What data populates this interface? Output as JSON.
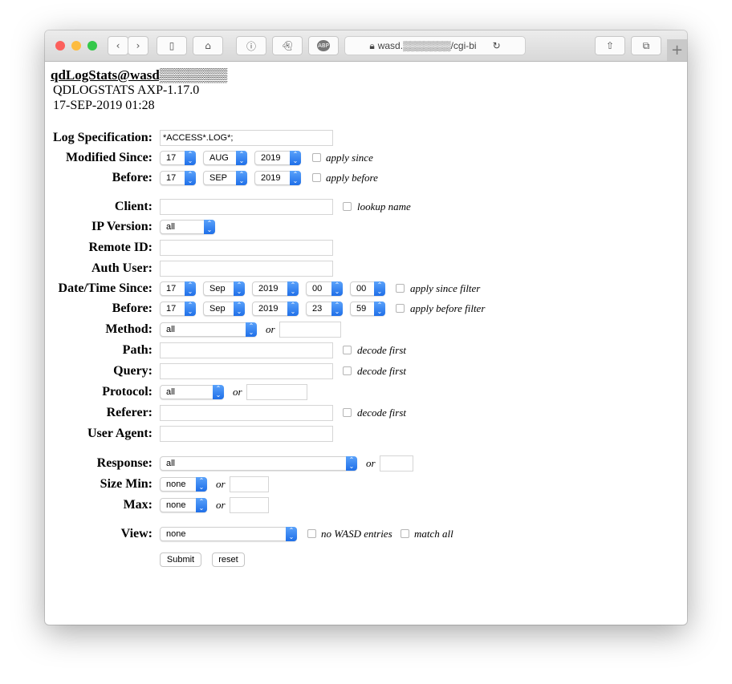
{
  "browser": {
    "url": "wasd.▒▒▒▒▒▒▒/cgi-bi",
    "icons": [
      "back-icon",
      "forward-icon",
      "sidebar-icon",
      "home-icon",
      "1password-icon",
      "ghostery-icon",
      "adblock-plus-icon",
      "lock-icon",
      "reload-icon",
      "share-icon",
      "tabs-icon",
      "new-tab-icon"
    ]
  },
  "header": {
    "title": "qdLogStats@wasd▒▒▒▒▒▒▒",
    "version": "QDLOGSTATS AXP-1.17.0",
    "datetime": "17-SEP-2019 01:28"
  },
  "form": {
    "log_spec": {
      "label": "Log Specification:",
      "value": "*ACCESS*.LOG*;"
    },
    "modified_since": {
      "label": "Modified Since:",
      "day": "17",
      "month": "AUG",
      "year": "2019",
      "check_label": "apply since"
    },
    "modified_before": {
      "label": "Before:",
      "day": "17",
      "month": "SEP",
      "year": "2019",
      "check_label": "apply before"
    },
    "client": {
      "label": "Client:",
      "value": "",
      "check_label": "lookup name"
    },
    "ip_version": {
      "label": "IP Version:",
      "value": "all"
    },
    "remote_id": {
      "label": "Remote ID:",
      "value": ""
    },
    "auth_user": {
      "label": "Auth User:",
      "value": ""
    },
    "dt_since": {
      "label": "Date/Time Since:",
      "day": "17",
      "month": "Sep",
      "year": "2019",
      "hour": "00",
      "minute": "00",
      "check_label": "apply since filter"
    },
    "dt_before": {
      "label": "Before:",
      "day": "17",
      "month": "Sep",
      "year": "2019",
      "hour": "23",
      "minute": "59",
      "check_label": "apply before filter"
    },
    "method": {
      "label": "Method:",
      "value": "all",
      "or": "or"
    },
    "path": {
      "label": "Path:",
      "check_label": "decode first"
    },
    "query": {
      "label": "Query:",
      "check_label": "decode first"
    },
    "protocol": {
      "label": "Protocol:",
      "value": "all",
      "or": "or"
    },
    "referer": {
      "label": "Referer:",
      "check_label": "decode first"
    },
    "user_agent": {
      "label": "User Agent:"
    },
    "response": {
      "label": "Response:",
      "value": "all",
      "or": "or"
    },
    "size_min": {
      "label": "Size Min:",
      "value": "none",
      "or": "or"
    },
    "size_max": {
      "label": "Max:",
      "value": "none",
      "or": "or"
    },
    "view": {
      "label": "View:",
      "value": "none",
      "check1_label": "no WASD entries",
      "check2_label": "match all"
    },
    "submit_label": "Submit",
    "reset_label": "reset"
  }
}
